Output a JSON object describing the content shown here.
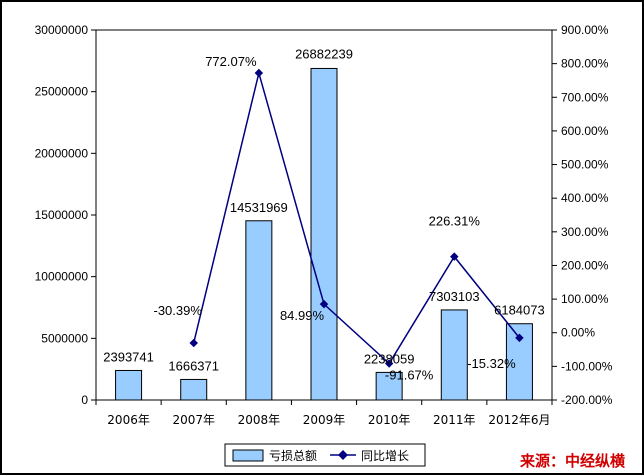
{
  "chart_data": {
    "type": "bar+line",
    "categories": [
      "2006年",
      "2007年",
      "2008年",
      "2009年",
      "2010年",
      "2011年",
      "2012年6月"
    ],
    "series": [
      {
        "name": "亏损总额",
        "type": "bar",
        "axis": "left",
        "values": [
          2393741,
          1666371,
          14531969,
          26882239,
          2238059,
          7303103,
          6184073
        ],
        "labels": [
          "2393741",
          "1666371",
          "14531969",
          "26882239",
          "2238059",
          "7303103",
          "6184073"
        ]
      },
      {
        "name": "同比增长",
        "type": "line",
        "axis": "right",
        "values": [
          null,
          -30.39,
          772.07,
          84.99,
          -91.67,
          226.31,
          -15.32
        ],
        "labels": [
          "",
          "-30.39%",
          "772.07%",
          "84.99%",
          "-91.67%",
          "226.31%",
          "-15.32%"
        ]
      }
    ],
    "y_left": {
      "min": 0,
      "max": 30000000,
      "ticks": [
        "0",
        "5000000",
        "10000000",
        "15000000",
        "20000000",
        "25000000",
        "30000000"
      ]
    },
    "y_right": {
      "min": -200,
      "max": 900,
      "ticks": [
        "-200.00%",
        "-100.00%",
        "0.00%",
        "100.00%",
        "200.00%",
        "300.00%",
        "400.00%",
        "500.00%",
        "600.00%",
        "700.00%",
        "800.00%",
        "900.00%"
      ]
    },
    "legend_position": "bottom",
    "grid": false,
    "colors": {
      "bar": "#99ccff",
      "bar_border": "#000000",
      "line": "#000080"
    }
  },
  "source_text": "来源：中经纵横"
}
